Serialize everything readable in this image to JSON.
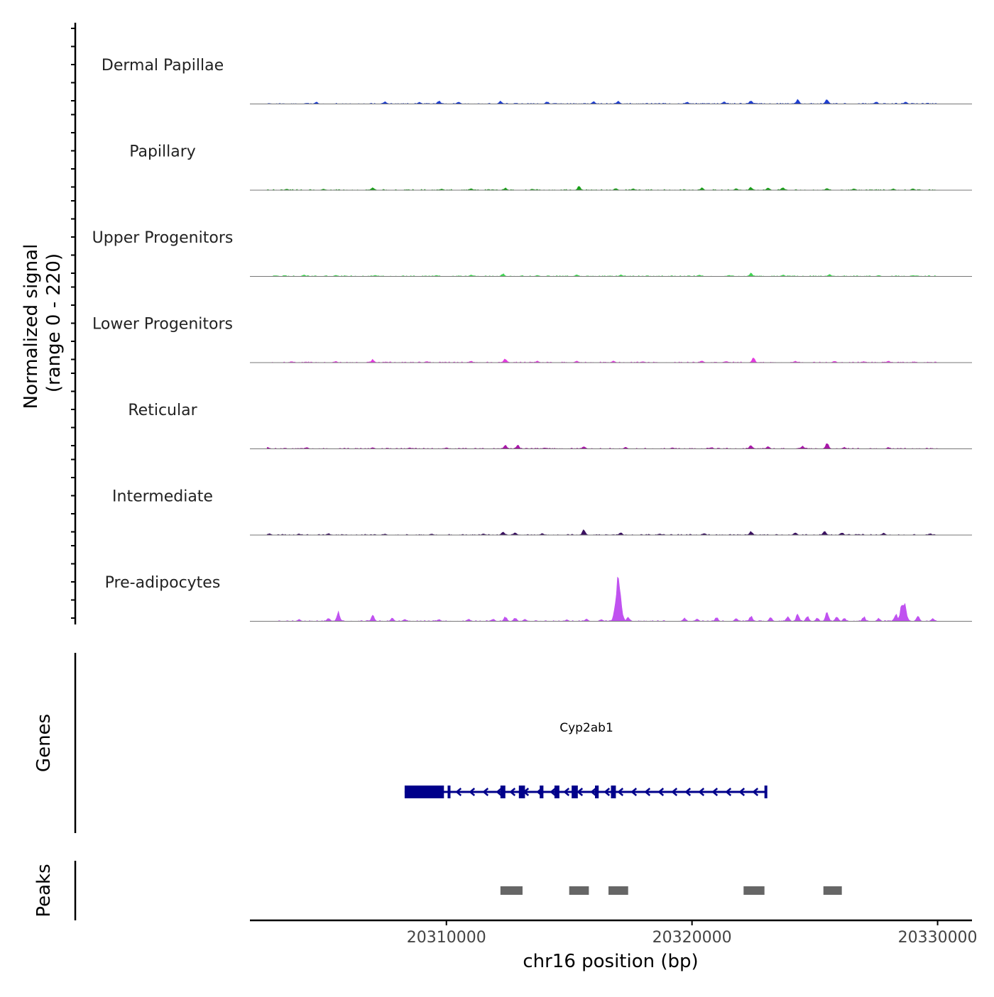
{
  "chart_data": {
    "type": "area",
    "title": "",
    "ylabel": "Normalized signal",
    "ylabel_range": "(range 0 - 220)",
    "xlabel": "chr16 position (bp)",
    "xlim": [
      20302000,
      20331400
    ],
    "ylim": [
      0,
      220
    ],
    "x_ticks": [
      20310000,
      20320000,
      20330000
    ],
    "x_tick_labels": [
      "20310000",
      "20320000",
      "20330000"
    ],
    "signal_tracks": [
      {
        "name": "Dermal Papillae",
        "color": "#1F3FD0",
        "peaks": [
          [
            20304700,
            5
          ],
          [
            20307500,
            6
          ],
          [
            20308900,
            5
          ],
          [
            20309700,
            8
          ],
          [
            20310500,
            6
          ],
          [
            20312200,
            7
          ],
          [
            20314100,
            6
          ],
          [
            20316000,
            6
          ],
          [
            20317000,
            7
          ],
          [
            20319800,
            5
          ],
          [
            20321300,
            6
          ],
          [
            20322400,
            9
          ],
          [
            20324300,
            12
          ],
          [
            20325500,
            12
          ],
          [
            20327500,
            6
          ],
          [
            20328700,
            5
          ]
        ]
      },
      {
        "name": "Papillary",
        "color": "#17A017",
        "peaks": [
          [
            20303500,
            3
          ],
          [
            20305000,
            3
          ],
          [
            20307000,
            7
          ],
          [
            20309800,
            3
          ],
          [
            20311000,
            4
          ],
          [
            20312400,
            6
          ],
          [
            20313500,
            3
          ],
          [
            20315400,
            10
          ],
          [
            20316900,
            5
          ],
          [
            20317600,
            4
          ],
          [
            20320400,
            6
          ],
          [
            20321800,
            4
          ],
          [
            20322400,
            8
          ],
          [
            20323100,
            6
          ],
          [
            20323700,
            7
          ],
          [
            20325500,
            5
          ],
          [
            20326600,
            4
          ],
          [
            20328200,
            4
          ],
          [
            20329000,
            4
          ]
        ]
      },
      {
        "name": "Upper Progenitors",
        "color": "#44D455",
        "peaks": [
          [
            20304200,
            4
          ],
          [
            20305500,
            3
          ],
          [
            20307100,
            3
          ],
          [
            20309600,
            3
          ],
          [
            20311000,
            4
          ],
          [
            20312300,
            7
          ],
          [
            20313700,
            3
          ],
          [
            20315300,
            4
          ],
          [
            20317100,
            4
          ],
          [
            20320300,
            4
          ],
          [
            20321500,
            3
          ],
          [
            20322400,
            9
          ],
          [
            20323700,
            4
          ],
          [
            20325600,
            5
          ],
          [
            20327600,
            3
          ],
          [
            20329000,
            3
          ]
        ]
      },
      {
        "name": "Lower Progenitors",
        "color": "#E43AE0",
        "peaks": [
          [
            20303700,
            3
          ],
          [
            20305500,
            3
          ],
          [
            20307000,
            8
          ],
          [
            20309200,
            3
          ],
          [
            20311000,
            4
          ],
          [
            20312400,
            10
          ],
          [
            20313700,
            4
          ],
          [
            20315300,
            4
          ],
          [
            20316800,
            4
          ],
          [
            20318000,
            3
          ],
          [
            20320400,
            5
          ],
          [
            20321400,
            4
          ],
          [
            20322500,
            12
          ],
          [
            20324200,
            4
          ],
          [
            20325800,
            4
          ],
          [
            20327000,
            3
          ],
          [
            20328000,
            4
          ]
        ]
      },
      {
        "name": "Reticular",
        "color": "#A818A8",
        "peaks": [
          [
            20302700,
            5
          ],
          [
            20304300,
            4
          ],
          [
            20307000,
            3
          ],
          [
            20308500,
            3
          ],
          [
            20310000,
            3
          ],
          [
            20312400,
            9
          ],
          [
            20312900,
            10
          ],
          [
            20314000,
            3
          ],
          [
            20315600,
            7
          ],
          [
            20317300,
            4
          ],
          [
            20319200,
            3
          ],
          [
            20320800,
            4
          ],
          [
            20322400,
            9
          ],
          [
            20323100,
            6
          ],
          [
            20324500,
            7
          ],
          [
            20325500,
            15
          ],
          [
            20326200,
            4
          ],
          [
            20328000,
            4
          ]
        ]
      },
      {
        "name": "Intermediate",
        "color": "#3A1060",
        "peaks": [
          [
            20302800,
            4
          ],
          [
            20304000,
            3
          ],
          [
            20305200,
            4
          ],
          [
            20307500,
            3
          ],
          [
            20309400,
            3
          ],
          [
            20311500,
            3
          ],
          [
            20312300,
            8
          ],
          [
            20312800,
            6
          ],
          [
            20313900,
            4
          ],
          [
            20315600,
            14
          ],
          [
            20317100,
            6
          ],
          [
            20318700,
            3
          ],
          [
            20320500,
            5
          ],
          [
            20322400,
            10
          ],
          [
            20324200,
            7
          ],
          [
            20325400,
            10
          ],
          [
            20326100,
            7
          ],
          [
            20327800,
            5
          ],
          [
            20329700,
            4
          ]
        ]
      },
      {
        "name": "Pre-adipocytes",
        "color": "#C052F0",
        "peaks": [
          [
            20304000,
            5
          ],
          [
            20305200,
            8
          ],
          [
            20305600,
            25
          ],
          [
            20307000,
            15
          ],
          [
            20307800,
            8
          ],
          [
            20308300,
            5
          ],
          [
            20309700,
            5
          ],
          [
            20310900,
            6
          ],
          [
            20311900,
            6
          ],
          [
            20312400,
            12
          ],
          [
            20312800,
            10
          ],
          [
            20313200,
            6
          ],
          [
            20314900,
            4
          ],
          [
            20315700,
            6
          ],
          [
            20316300,
            5
          ],
          [
            20316900,
            30
          ],
          [
            20317000,
            110
          ],
          [
            20317400,
            10
          ],
          [
            20319700,
            8
          ],
          [
            20320200,
            6
          ],
          [
            20321000,
            10
          ],
          [
            20321800,
            7
          ],
          [
            20322400,
            14
          ],
          [
            20323200,
            10
          ],
          [
            20323900,
            13
          ],
          [
            20324300,
            18
          ],
          [
            20324700,
            14
          ],
          [
            20325100,
            9
          ],
          [
            20325500,
            24
          ],
          [
            20325900,
            13
          ],
          [
            20326200,
            8
          ],
          [
            20327000,
            12
          ],
          [
            20327600,
            8
          ],
          [
            20328300,
            20
          ],
          [
            20328600,
            55
          ],
          [
            20329200,
            14
          ],
          [
            20329800,
            8
          ]
        ]
      }
    ],
    "genes": {
      "label": "Genes",
      "gene_name": "Cyp2ab1",
      "strand": "-",
      "start": 20308300,
      "end": 20323050,
      "utr": [
        20308300,
        20309900
      ],
      "exons": [
        [
          20310050,
          20310150
        ],
        [
          20312200,
          20312400
        ],
        [
          20312950,
          20313200
        ],
        [
          20313800,
          20313950
        ],
        [
          20314400,
          20314600
        ],
        [
          20315100,
          20315350
        ],
        [
          20316050,
          20316200
        ],
        [
          20316700,
          20316900
        ],
        [
          20322950,
          20323050
        ]
      ],
      "color": "#00008B"
    },
    "peaks_track": {
      "label": "Peaks",
      "color": "#666666",
      "regions": [
        [
          20312200,
          20313100
        ],
        [
          20315000,
          20315800
        ],
        [
          20316600,
          20317400
        ],
        [
          20322100,
          20322950
        ],
        [
          20325350,
          20326100
        ]
      ]
    }
  }
}
